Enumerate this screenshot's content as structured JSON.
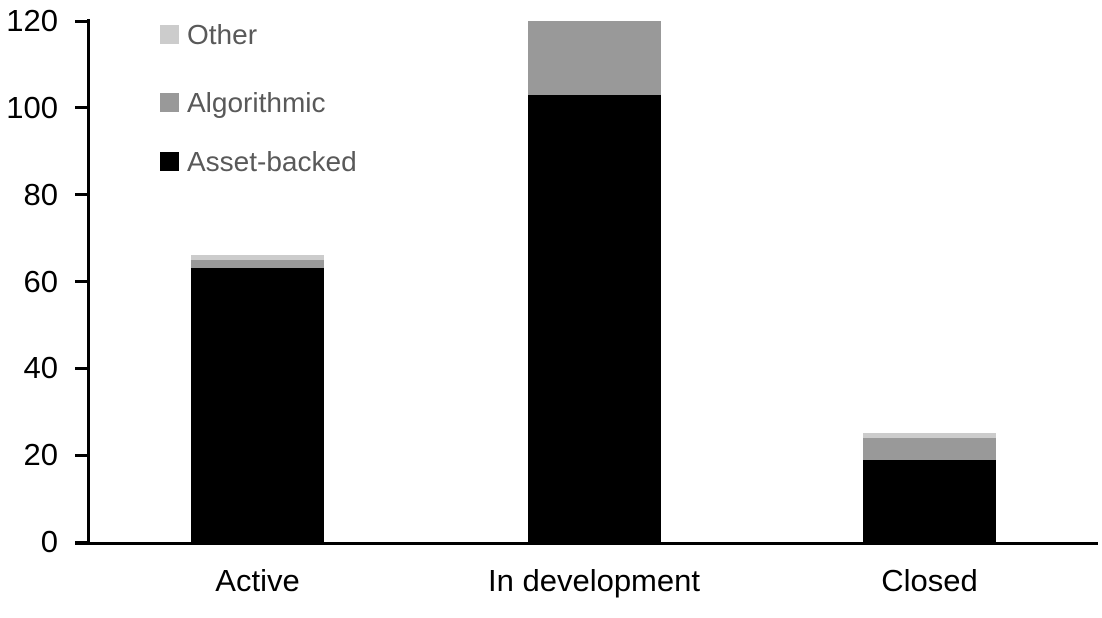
{
  "chart_data": {
    "type": "bar",
    "stacked": true,
    "title": "",
    "xlabel": "",
    "ylabel": "",
    "categories": [
      "Active",
      "In development",
      "Closed"
    ],
    "series": [
      {
        "name": "Asset-backed",
        "color": "#000000",
        "values": [
          63,
          103,
          19
        ]
      },
      {
        "name": "Algorithmic",
        "color": "#999999",
        "values": [
          2,
          17,
          5
        ]
      },
      {
        "name": "Other",
        "color": "#cccccc",
        "values": [
          1,
          0,
          1
        ]
      }
    ],
    "stack_totals": [
      66,
      120,
      25
    ],
    "ylim": [
      0,
      120
    ],
    "yticks": [
      0,
      20,
      40,
      60,
      80,
      100,
      120
    ],
    "grid": false,
    "axis_color": "#000000",
    "legend": {
      "position": "top-left",
      "entries": [
        "Other",
        "Algorithmic",
        "Asset-backed"
      ],
      "text_color": "#595959"
    }
  }
}
